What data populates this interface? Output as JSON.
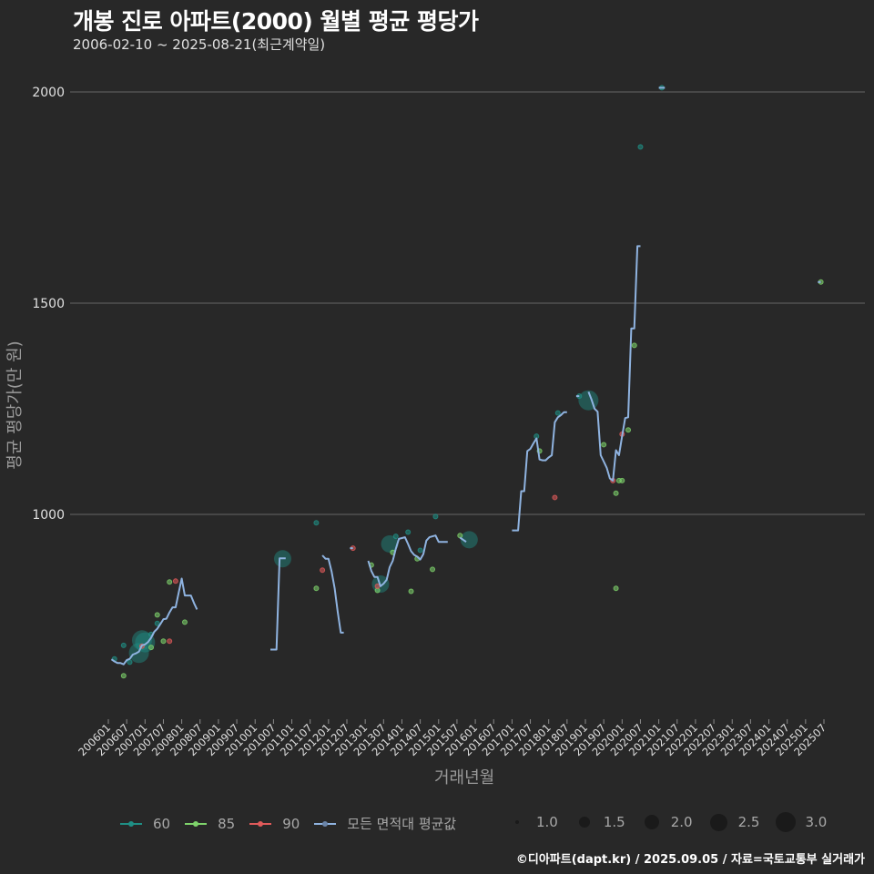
{
  "header": {
    "title": "개봉 진로 아파트(2000) 월별 평균 평당가",
    "subtitle": "2006-02-10 ~ 2025-08-21(최근계약일)"
  },
  "footer": {
    "credit": "©디아파트(dapt.kr) / 2025.09.05 / 자료=국토교통부 실거래가"
  },
  "legend": {
    "series": [
      {
        "label": "60",
        "color": "#1f8f85"
      },
      {
        "label": "85",
        "color": "#7ed36b"
      },
      {
        "label": "90",
        "color": "#e05a5a"
      },
      {
        "label": "모든 면적대 평균값",
        "color": "#8fb3e0"
      }
    ],
    "sizes": [
      {
        "label": "1.0",
        "px": 4
      },
      {
        "label": "1.5",
        "px": 12
      },
      {
        "label": "2.0",
        "px": 16
      },
      {
        "label": "2.5",
        "px": 19
      },
      {
        "label": "3.0",
        "px": 22
      }
    ]
  },
  "chart_data": {
    "type": "line",
    "title": "개봉 진로 아파트(2000) 월별 평균 평당가",
    "subtitle": "2006-02-10 ~ 2025-08-21(최근계약일)",
    "xlabel": "거래년월",
    "ylabel": "평균 평당가(만 원)",
    "yticks": [
      1000,
      1500,
      2000
    ],
    "ylim": [
      520,
      2060
    ],
    "xticks": [
      "200601",
      "200607",
      "200701",
      "200707",
      "200801",
      "200807",
      "200901",
      "200907",
      "201001",
      "201007",
      "201101",
      "201107",
      "201201",
      "201207",
      "201301",
      "201307",
      "201401",
      "201407",
      "201501",
      "201507",
      "201601",
      "201607",
      "201701",
      "201707",
      "201801",
      "201807",
      "201901",
      "201907",
      "202001",
      "202007",
      "202101",
      "202107",
      "202201",
      "202207",
      "202301",
      "202307",
      "202401",
      "202407",
      "202501",
      "202507"
    ],
    "grid": "horizontal major lines only",
    "legend_position": "bottom",
    "series": [
      {
        "name": "모든 면적대 평균값",
        "type": "line",
        "segments": [
          [
            [
              "200602",
              657
            ],
            [
              "200603",
              652
            ],
            [
              "200604",
              648
            ],
            [
              "200605",
              648
            ],
            [
              "200606",
              645
            ],
            [
              "200607",
              655
            ],
            [
              "200608",
              658
            ],
            [
              "200609",
              668
            ],
            [
              "200610",
              671
            ],
            [
              "200611",
              675
            ],
            [
              "200612",
              690
            ],
            [
              "200701",
              692
            ],
            [
              "200702",
              698
            ],
            [
              "200703",
              708
            ],
            [
              "200704",
              722
            ],
            [
              "200705",
              729
            ],
            [
              "200706",
              740
            ],
            [
              "200707",
              752
            ],
            [
              "200708",
              753
            ],
            [
              "200709",
              768
            ],
            [
              "200710",
              780
            ],
            [
              "200711",
              780
            ],
            [
              "200712",
              815
            ],
            [
              "200801",
              848
            ],
            [
              "200802",
              808
            ],
            [
              "200803",
              808
            ],
            [
              "200804",
              808
            ],
            [
              "200805",
              790
            ],
            [
              "200806",
              775
            ]
          ],
          [
            [
              "201006",
              680
            ],
            [
              "201007",
              680
            ],
            [
              "201008",
              680
            ],
            [
              "201009",
              896
            ],
            [
              "201010",
              896
            ],
            [
              "201011",
              896
            ]
          ],
          [
            [
              "201111",
              903
            ],
            [
              "201112",
              895
            ],
            [
              "201201",
              895
            ],
            [
              "201202",
              865
            ],
            [
              "201203",
              825
            ],
            [
              "201204",
              770
            ],
            [
              "201205",
              720
            ],
            [
              "201206",
              720
            ]
          ],
          [
            [
              "201208",
              920
            ],
            [
              "201209",
              920
            ]
          ],
          [
            [
              "201302",
              890
            ],
            [
              "201303",
              866
            ],
            [
              "201304",
              852
            ],
            [
              "201305",
              852
            ],
            [
              "201306",
              830
            ],
            [
              "201307",
              836
            ],
            [
              "201308",
              845
            ],
            [
              "201309",
              875
            ],
            [
              "201310",
              890
            ],
            [
              "201311",
              918
            ],
            [
              "201312",
              942
            ],
            [
              "201401",
              944
            ],
            [
              "201402",
              946
            ],
            [
              "201403",
              930
            ],
            [
              "201404",
              913
            ],
            [
              "201405",
              904
            ],
            [
              "201406",
              900
            ],
            [
              "201407",
              893
            ],
            [
              "201408",
              906
            ],
            [
              "201409",
              938
            ],
            [
              "201410",
              946
            ],
            [
              "201411",
              948
            ],
            [
              "201412",
              950
            ],
            [
              "201501",
              935
            ],
            [
              "201502",
              935
            ],
            [
              "201503",
              935
            ],
            [
              "201504",
              935
            ]
          ],
          [
            [
              "201508",
              945
            ],
            [
              "201509",
              940
            ],
            [
              "201510",
              935
            ]
          ],
          [
            [
              "201701",
              962
            ],
            [
              "201702",
              962
            ],
            [
              "201703",
              962
            ],
            [
              "201704",
              1055
            ],
            [
              "201705",
              1055
            ],
            [
              "201706",
              1150
            ],
            [
              "201707",
              1155
            ],
            [
              "201708",
              1168
            ],
            [
              "201709",
              1180
            ],
            [
              "201710",
              1130
            ],
            [
              "201711",
              1128
            ],
            [
              "201712",
              1128
            ],
            [
              "201801",
              1135
            ],
            [
              "201802",
              1140
            ],
            [
              "201803",
              1218
            ],
            [
              "201804",
              1230
            ],
            [
              "201805",
              1235
            ],
            [
              "201806",
              1242
            ],
            [
              "201807",
              1242
            ]
          ],
          [
            [
              "201810",
              1280
            ],
            [
              "201811",
              1280
            ]
          ],
          [
            [
              "201902",
              1290
            ],
            [
              "201903",
              1272
            ],
            [
              "201904",
              1250
            ],
            [
              "201905",
              1243
            ],
            [
              "201906",
              1140
            ],
            [
              "201907",
              1125
            ],
            [
              "201908",
              1110
            ],
            [
              "201909",
              1085
            ],
            [
              "201910",
              1080
            ],
            [
              "201911",
              1152
            ],
            [
              "201912",
              1140
            ],
            [
              "202001",
              1185
            ],
            [
              "202002",
              1228
            ],
            [
              "202003",
              1230
            ],
            [
              "202004",
              1440
            ],
            [
              "202005",
              1440
            ],
            [
              "202006",
              1635
            ],
            [
              "202007",
              1635
            ]
          ],
          [
            [
              "202101",
              2010
            ],
            [
              "202102",
              2010
            ],
            [
              "202103",
              2010
            ]
          ],
          [
            [
              "202505",
              1550
            ],
            [
              "202506",
              1550
            ]
          ]
        ]
      },
      {
        "name": "60",
        "type": "scatter",
        "points": [
          {
            "x": "200603",
            "y": 658,
            "size": 1.0
          },
          {
            "x": "200606",
            "y": 690,
            "size": 1.0
          },
          {
            "x": "200608",
            "y": 650,
            "size": 1.0
          },
          {
            "x": "200611",
            "y": 672,
            "size": 3.0
          },
          {
            "x": "200612",
            "y": 702,
            "size": 3.0
          },
          {
            "x": "200701",
            "y": 697,
            "size": 3.0
          },
          {
            "x": "200703",
            "y": 716,
            "size": 1.0
          },
          {
            "x": "200705",
            "y": 742,
            "size": 1.0
          },
          {
            "x": "201010",
            "y": 895,
            "size": 2.5
          },
          {
            "x": "201109",
            "y": 980,
            "size": 1.0
          },
          {
            "x": "201306",
            "y": 835,
            "size": 2.5
          },
          {
            "x": "201309",
            "y": 930,
            "size": 2.5
          },
          {
            "x": "201311",
            "y": 948,
            "size": 1.0
          },
          {
            "x": "201403",
            "y": 958,
            "size": 1.0
          },
          {
            "x": "201407",
            "y": 915,
            "size": 1.0
          },
          {
            "x": "201412",
            "y": 995,
            "size": 1.0
          },
          {
            "x": "201511",
            "y": 940,
            "size": 2.5
          },
          {
            "x": "201709",
            "y": 1185,
            "size": 1.0
          },
          {
            "x": "201804",
            "y": 1240,
            "size": 1.0
          },
          {
            "x": "201811",
            "y": 1280,
            "size": 1.0
          },
          {
            "x": "201902",
            "y": 1270,
            "size": 3.0
          },
          {
            "x": "202007",
            "y": 1870,
            "size": 1.0
          },
          {
            "x": "202102",
            "y": 2010,
            "size": 1.0
          }
        ]
      },
      {
        "name": "85",
        "type": "scatter",
        "points": [
          {
            "x": "200606",
            "y": 618,
            "size": 1.0
          },
          {
            "x": "200703",
            "y": 685,
            "size": 1.0
          },
          {
            "x": "200705",
            "y": 762,
            "size": 1.0
          },
          {
            "x": "200707",
            "y": 700,
            "size": 1.0
          },
          {
            "x": "200709",
            "y": 840,
            "size": 1.0
          },
          {
            "x": "200802",
            "y": 745,
            "size": 1.0
          },
          {
            "x": "201109",
            "y": 825,
            "size": 1.0
          },
          {
            "x": "201303",
            "y": 880,
            "size": 1.0
          },
          {
            "x": "201305",
            "y": 820,
            "size": 1.0
          },
          {
            "x": "201310",
            "y": 910,
            "size": 1.0
          },
          {
            "x": "201404",
            "y": 818,
            "size": 1.0
          },
          {
            "x": "201406",
            "y": 895,
            "size": 1.0
          },
          {
            "x": "201411",
            "y": 870,
            "size": 1.0
          },
          {
            "x": "201508",
            "y": 950,
            "size": 1.0
          },
          {
            "x": "201710",
            "y": 1150,
            "size": 1.0
          },
          {
            "x": "201907",
            "y": 1165,
            "size": 1.0
          },
          {
            "x": "202001",
            "y": 1080,
            "size": 1.0
          },
          {
            "x": "201911",
            "y": 1050,
            "size": 1.0
          },
          {
            "x": "201912",
            "y": 1080,
            "size": 1.0
          },
          {
            "x": "202003",
            "y": 1200,
            "size": 1.0
          },
          {
            "x": "202005",
            "y": 1400,
            "size": 1.0
          },
          {
            "x": "201911",
            "y": 825,
            "size": 1.0
          },
          {
            "x": "202506",
            "y": 1550,
            "size": 1.0
          }
        ]
      },
      {
        "name": "90",
        "type": "scatter",
        "points": [
          {
            "x": "200612",
            "y": 688,
            "size": 1.0
          },
          {
            "x": "200709",
            "y": 700,
            "size": 1.0
          },
          {
            "x": "200711",
            "y": 842,
            "size": 1.0
          },
          {
            "x": "201111",
            "y": 868,
            "size": 1.0
          },
          {
            "x": "201209",
            "y": 920,
            "size": 1.0
          },
          {
            "x": "201305",
            "y": 830,
            "size": 1.0
          },
          {
            "x": "201803",
            "y": 1040,
            "size": 1.0
          },
          {
            "x": "201910",
            "y": 1080,
            "size": 1.0
          },
          {
            "x": "202001",
            "y": 1190,
            "size": 1.0
          }
        ]
      }
    ]
  }
}
